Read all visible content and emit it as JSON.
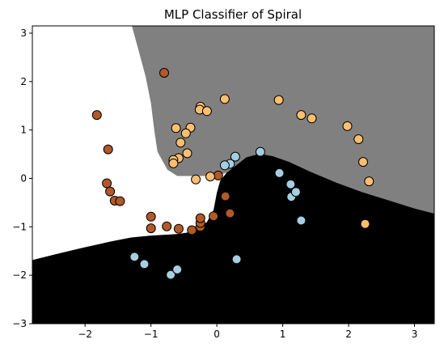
{
  "chart_data": {
    "type": "scatter",
    "title": "MLP Classifier of Spiral",
    "xlabel": "",
    "ylabel": "",
    "xlim": [
      -2.8,
      3.3
    ],
    "ylim": [
      -3.0,
      3.15
    ],
    "x_ticks": [
      -2,
      -1,
      0,
      1,
      2,
      3
    ],
    "y_ticks": [
      -3,
      -2,
      -1,
      0,
      1,
      2,
      3
    ],
    "x_tick_labels": [
      "−2",
      "−1",
      "0",
      "1",
      "2",
      "3"
    ],
    "y_tick_labels": [
      "−3",
      "−2",
      "−1",
      "0",
      "1",
      "2",
      "3"
    ],
    "grid": false,
    "decision_regions": [
      {
        "name": "class_0",
        "color": "#ffffff"
      },
      {
        "name": "class_1",
        "color": "#808080"
      },
      {
        "name": "class_2",
        "color": "#000000"
      }
    ],
    "series": [
      {
        "color": "#a6cee3",
        "points": [
          {
            "x": -1.25,
            "y": -1.62
          },
          {
            "x": -1.1,
            "y": -1.77
          },
          {
            "x": -0.7,
            "y": -1.99
          },
          {
            "x": -0.6,
            "y": -1.88
          },
          {
            "x": 0.3,
            "y": -1.67
          },
          {
            "x": 1.28,
            "y": -0.87
          },
          {
            "x": 1.13,
            "y": -0.38
          },
          {
            "x": 1.2,
            "y": -0.28
          },
          {
            "x": 1.12,
            "y": -0.12
          },
          {
            "x": 0.95,
            "y": 0.11
          },
          {
            "x": 0.66,
            "y": 0.55
          },
          {
            "x": 0.28,
            "y": 0.45
          },
          {
            "x": 0.2,
            "y": 0.3
          },
          {
            "x": 0.12,
            "y": 0.27
          }
        ]
      },
      {
        "color": "#b15928",
        "points": [
          {
            "x": -0.8,
            "y": 2.18
          },
          {
            "x": -1.82,
            "y": 1.31
          },
          {
            "x": -1.65,
            "y": 0.6
          },
          {
            "x": -1.67,
            "y": -0.1
          },
          {
            "x": -1.62,
            "y": -0.27
          },
          {
            "x": -1.55,
            "y": -0.46
          },
          {
            "x": -1.47,
            "y": -0.47
          },
          {
            "x": -1.0,
            "y": -0.79
          },
          {
            "x": -1.0,
            "y": -1.03
          },
          {
            "x": -0.76,
            "y": -0.99
          },
          {
            "x": -0.58,
            "y": -1.04
          },
          {
            "x": -0.38,
            "y": -1.07
          },
          {
            "x": -0.25,
            "y": -1.0
          },
          {
            "x": -0.25,
            "y": -0.92
          },
          {
            "x": -0.25,
            "y": -0.82
          },
          {
            "x": -0.05,
            "y": -0.78
          },
          {
            "x": 0.2,
            "y": -0.72
          },
          {
            "x": 0.13,
            "y": -0.37
          },
          {
            "x": 0.02,
            "y": 0.06
          }
        ]
      },
      {
        "color": "#fdbf6f",
        "points": [
          {
            "x": 0.12,
            "y": 1.64
          },
          {
            "x": 0.94,
            "y": 1.62
          },
          {
            "x": 1.28,
            "y": 1.31
          },
          {
            "x": 1.44,
            "y": 1.24
          },
          {
            "x": 1.98,
            "y": 1.08
          },
          {
            "x": 2.15,
            "y": 0.81
          },
          {
            "x": 2.22,
            "y": 0.34
          },
          {
            "x": 2.31,
            "y": -0.06
          },
          {
            "x": 2.25,
            "y": -0.94
          },
          {
            "x": -0.25,
            "y": 1.48
          },
          {
            "x": -0.26,
            "y": 1.42
          },
          {
            "x": -0.15,
            "y": 1.39
          },
          {
            "x": -0.62,
            "y": 1.04
          },
          {
            "x": -0.4,
            "y": 1.05
          },
          {
            "x": -0.47,
            "y": 0.93
          },
          {
            "x": -0.55,
            "y": 0.74
          },
          {
            "x": -0.45,
            "y": 0.52
          },
          {
            "x": -0.58,
            "y": 0.42
          },
          {
            "x": -0.66,
            "y": 0.38
          },
          {
            "x": -0.66,
            "y": 0.31
          },
          {
            "x": -0.32,
            "y": -0.02
          },
          {
            "x": -0.1,
            "y": 0.04
          }
        ]
      }
    ]
  }
}
